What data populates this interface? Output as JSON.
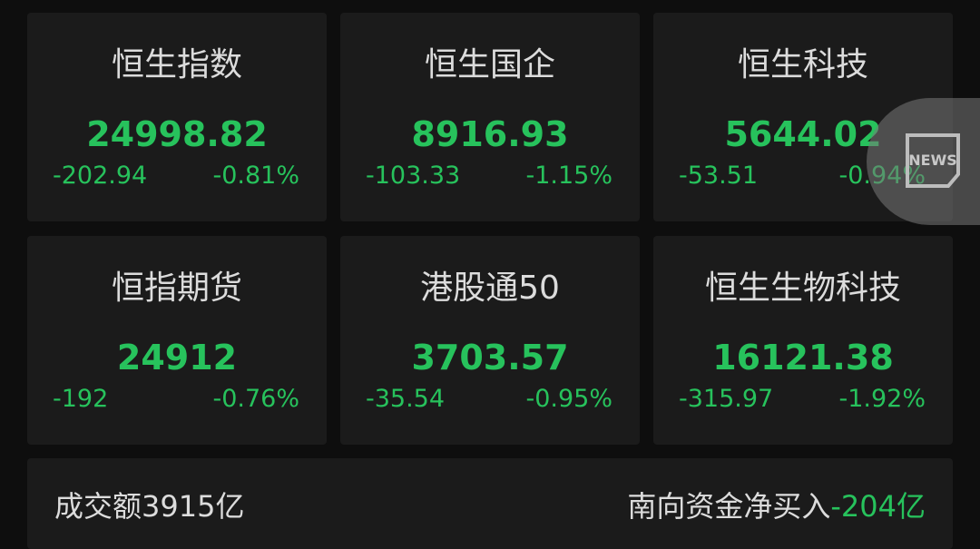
{
  "indices": [
    {
      "name": "恒生指数",
      "price": "24998.82",
      "change": "-202.94",
      "pct": "-0.81%"
    },
    {
      "name": "恒生国企",
      "price": "8916.93",
      "change": "-103.33",
      "pct": "-1.15%"
    },
    {
      "name": "恒生科技",
      "price": "5644.02",
      "change": "-53.51",
      "pct": "-0.94%"
    },
    {
      "name": "恒指期货",
      "price": "24912",
      "change": "-192",
      "pct": "-0.76%"
    },
    {
      "name": "港股通50",
      "price": "3703.57",
      "change": "-35.54",
      "pct": "-0.95%"
    },
    {
      "name": "恒生生物科技",
      "price": "16121.38",
      "change": "-315.97",
      "pct": "-1.92%"
    }
  ],
  "summary": {
    "turnover": "成交额3915亿",
    "southbound_label": "南向资金净买入",
    "southbound_value": "-204亿"
  },
  "news_button": {
    "label": "NEWS",
    "icon": "news-icon"
  },
  "colors": {
    "down": "#27c25c",
    "card": "#1b1b1b",
    "background": "#0e0e0e"
  }
}
